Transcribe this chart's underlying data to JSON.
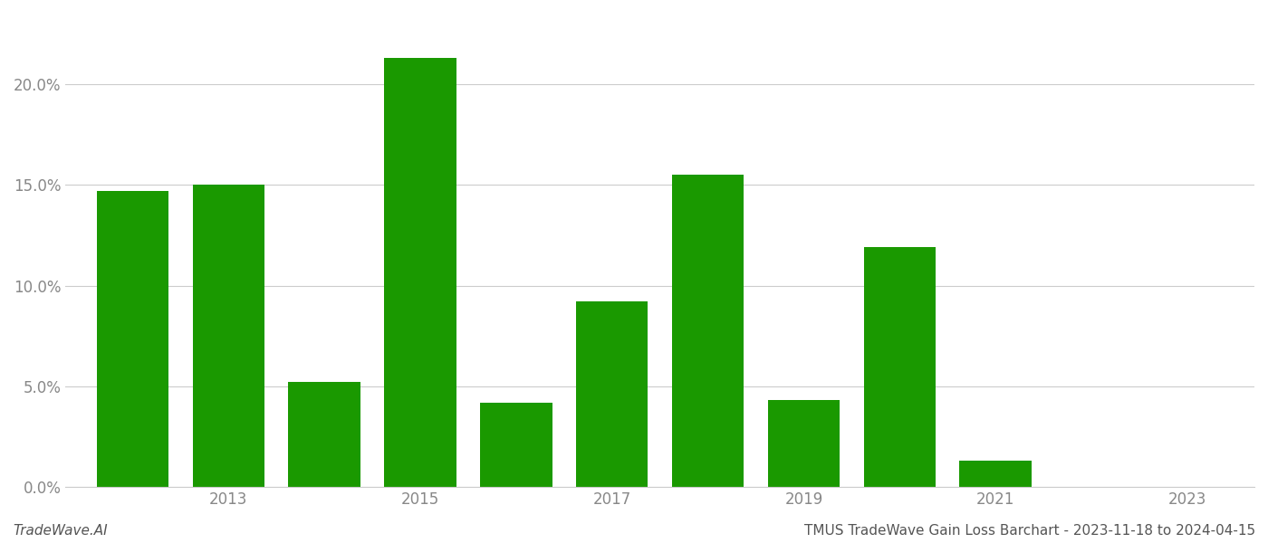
{
  "years": [
    2012,
    2013,
    2014,
    2015,
    2016,
    2017,
    2018,
    2019,
    2020,
    2021,
    2022
  ],
  "values": [
    0.147,
    0.15,
    0.052,
    0.213,
    0.042,
    0.092,
    0.155,
    0.043,
    0.119,
    0.013,
    0.0
  ],
  "bar_color": "#1a9900",
  "background_color": "#ffffff",
  "grid_color": "#cccccc",
  "ylabel_color": "#888888",
  "xlabel_color": "#888888",
  "watermark_color": "#555555",
  "xlim": [
    2011.3,
    2023.7
  ],
  "ylim": [
    0.0,
    0.235
  ],
  "yticks": [
    0.0,
    0.05,
    0.1,
    0.15,
    0.2
  ],
  "xticks": [
    2013,
    2015,
    2017,
    2019,
    2021,
    2023
  ],
  "bar_width": 0.75,
  "footer_left": "TradeWave.AI",
  "footer_right": "TMUS TradeWave Gain Loss Barchart - 2023-11-18 to 2024-04-15",
  "tick_fontsize": 12,
  "footer_fontsize": 11
}
